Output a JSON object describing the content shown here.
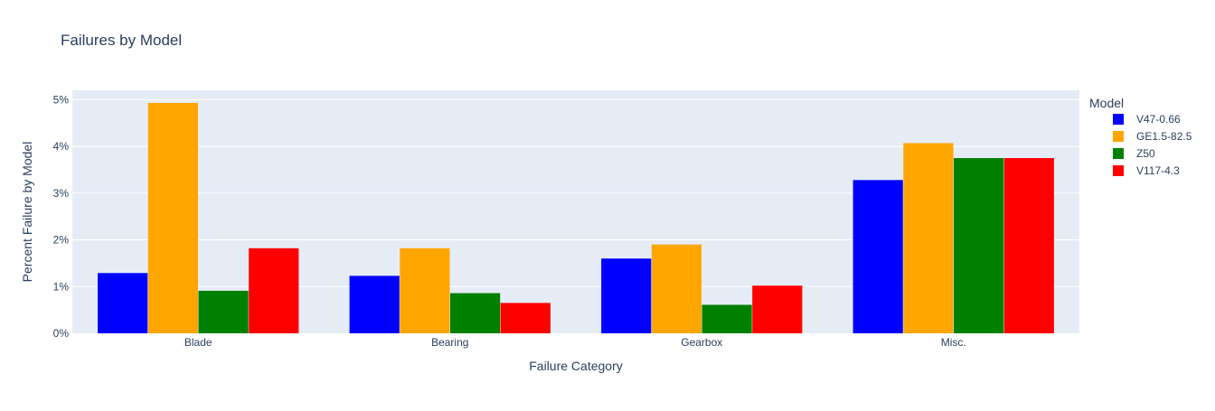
{
  "chart_data": {
    "type": "bar",
    "title": "Failures by Model",
    "xlabel": "Failure Category",
    "ylabel": "Percent Failure by Model",
    "categories": [
      "Blade",
      "Bearing",
      "Gearbox",
      "Misc."
    ],
    "series": [
      {
        "name": "V47-0.66",
        "color": "#0000ff",
        "values": [
          1.29,
          1.23,
          1.6,
          3.28
        ]
      },
      {
        "name": "GE1.5-82.5",
        "color": "#ffa500",
        "values": [
          4.93,
          1.82,
          1.9,
          4.07
        ]
      },
      {
        "name": "Z50",
        "color": "#008000",
        "values": [
          0.91,
          0.86,
          0.61,
          3.75
        ]
      },
      {
        "name": "V117-4.3",
        "color": "#ff0000",
        "values": [
          1.82,
          0.65,
          1.02,
          3.75
        ]
      }
    ],
    "ylim": [
      0,
      5.2
    ],
    "yticks": [
      0,
      1,
      2,
      3,
      4,
      5
    ],
    "ytick_labels": [
      "0%",
      "1%",
      "2%",
      "3%",
      "4%",
      "5%"
    ],
    "legend_title": "Model",
    "legend_position": "right",
    "grid": true,
    "plot_background": "#e5ecf6",
    "gridline_color": "#ffffff",
    "text_color": "#2a3f5f"
  }
}
